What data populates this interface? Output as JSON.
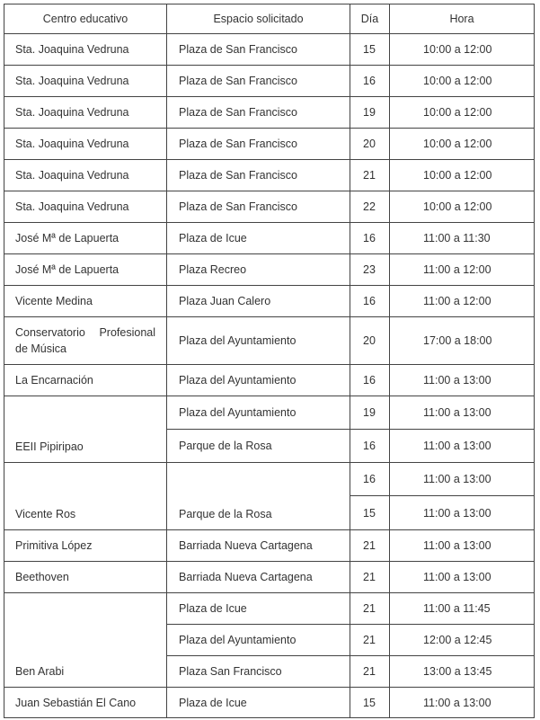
{
  "headers": [
    "Centro educativo",
    "Espacio solicitado",
    "Día",
    "Hora"
  ],
  "rows": [
    {
      "cells": [
        {
          "text": "Sta. Joaquina Vedruna"
        },
        {
          "text": "Plaza de San Francisco"
        },
        {
          "text": "15"
        },
        {
          "text": "10:00 a 12:00"
        }
      ]
    },
    {
      "cells": [
        {
          "text": "Sta. Joaquina Vedruna"
        },
        {
          "text": "Plaza de San Francisco"
        },
        {
          "text": "16"
        },
        {
          "text": "10:00 a 12:00"
        }
      ]
    },
    {
      "cells": [
        {
          "text": "Sta. Joaquina Vedruna"
        },
        {
          "text": "Plaza de San Francisco"
        },
        {
          "text": "19"
        },
        {
          "text": "10:00 a 12:00"
        }
      ]
    },
    {
      "cells": [
        {
          "text": "Sta. Joaquina Vedruna"
        },
        {
          "text": "Plaza de San Francisco"
        },
        {
          "text": "20"
        },
        {
          "text": "10:00 a 12:00"
        }
      ]
    },
    {
      "cells": [
        {
          "text": "Sta. Joaquina Vedruna"
        },
        {
          "text": "Plaza de San Francisco"
        },
        {
          "text": "21"
        },
        {
          "text": "10:00 a 12:00"
        }
      ]
    },
    {
      "cells": [
        {
          "text": "Sta. Joaquina Vedruna"
        },
        {
          "text": "Plaza de San Francisco"
        },
        {
          "text": "22"
        },
        {
          "text": "10:00 a 12:00"
        }
      ]
    },
    {
      "cells": [
        {
          "text": "José Mª de Lapuerta"
        },
        {
          "text": "Plaza de Icue"
        },
        {
          "text": "16"
        },
        {
          "text": "11:00 a 11:30"
        }
      ]
    },
    {
      "cells": [
        {
          "text": "José Mª de Lapuerta"
        },
        {
          "text": "Plaza Recreo"
        },
        {
          "text": "23"
        },
        {
          "text": "11:00 a 12:00"
        }
      ]
    },
    {
      "cells": [
        {
          "text": "Vicente Medina"
        },
        {
          "text": "Plaza Juan Calero"
        },
        {
          "text": "16"
        },
        {
          "text": "11:00 a 12:00"
        }
      ]
    },
    {
      "cells": [
        {
          "text": "Conservatorio Profesional de Música"
        },
        {
          "text": "Plaza del Ayuntamiento"
        },
        {
          "text": "20"
        },
        {
          "text": "17:00 a 18:00"
        }
      ]
    },
    {
      "cells": [
        {
          "text": "La Encarnación"
        },
        {
          "text": "Plaza del Ayuntamiento"
        },
        {
          "text": "16"
        },
        {
          "text": "11:00 a 13:00"
        }
      ]
    },
    {
      "cells": [
        {
          "text": "EEII Pipiripao",
          "rowspan": 2
        },
        {
          "text": "Plaza del Ayuntamiento"
        },
        {
          "text": "19"
        },
        {
          "text": "11:00 a 13:00"
        }
      ]
    },
    {
      "cells": [
        {
          "col": 1,
          "text": "Parque de la Rosa"
        },
        {
          "text": "16"
        },
        {
          "text": "11:00 a 13:00"
        }
      ]
    },
    {
      "cells": [
        {
          "text": "Vicente Ros",
          "rowspan": 2
        },
        {
          "text": "Parque de la Rosa",
          "rowspan": 2
        },
        {
          "text": "16"
        },
        {
          "text": "11:00 a 13:00"
        }
      ]
    },
    {
      "cells": [
        {
          "col": 2,
          "text": "15"
        },
        {
          "text": "11:00 a 13:00"
        }
      ]
    },
    {
      "cells": [
        {
          "text": "Primitiva López"
        },
        {
          "text": "Barriada Nueva Cartagena"
        },
        {
          "text": "21"
        },
        {
          "text": "11:00 a 13:00"
        }
      ]
    },
    {
      "cells": [
        {
          "text": "Beethoven"
        },
        {
          "text": "Barriada Nueva Cartagena"
        },
        {
          "text": "21"
        },
        {
          "text": "11:00 a 13:00"
        }
      ]
    },
    {
      "cells": [
        {
          "text": "Ben Arabi",
          "rowspan": 3
        },
        {
          "text": "Plaza de Icue"
        },
        {
          "text": "21"
        },
        {
          "text": "11:00 a 11:45"
        }
      ]
    },
    {
      "cells": [
        {
          "col": 1,
          "text": "Plaza del Ayuntamiento"
        },
        {
          "text": "21"
        },
        {
          "text": "12:00 a 12:45"
        }
      ]
    },
    {
      "cells": [
        {
          "col": 1,
          "text": "Plaza San Francisco"
        },
        {
          "text": "21"
        },
        {
          "text": "13:00 a 13:45"
        }
      ]
    },
    {
      "cells": [
        {
          "text": "Juan Sebastián El Cano"
        },
        {
          "text": "Plaza de Icue"
        },
        {
          "text": "15"
        },
        {
          "text": "11:00 a 13:00"
        }
      ]
    }
  ]
}
